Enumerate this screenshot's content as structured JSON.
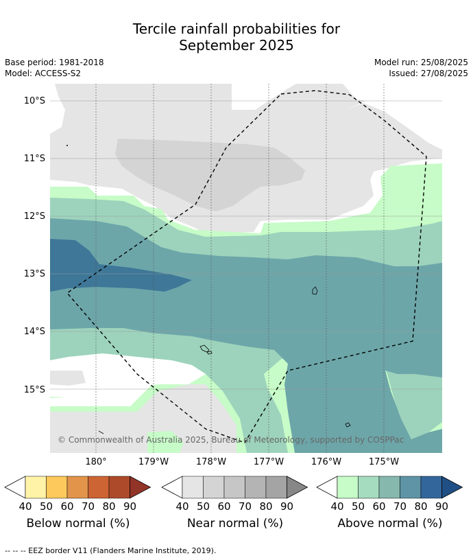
{
  "header": {
    "title_line1": "Tercile rainfall probabilities for",
    "title_line2": "September 2025",
    "base_period": "Base period: 1981-2018",
    "model": "Model: ACCESS-S2",
    "model_run": "Model run: 25/08/2025",
    "issued": "Issued: 27/08/2025"
  },
  "map": {
    "lat_labels": [
      "10°S",
      "11°S",
      "12°S",
      "13°S",
      "14°S",
      "15°S"
    ],
    "lon_labels": [
      "180°",
      "179°W",
      "178°W",
      "177°W",
      "176°W",
      "175°W"
    ],
    "copyright": "© Commonwealth of Australia 2025, Bureau of Meteorology, supported by COSPPac",
    "colors": {
      "near_40": "#e5e5e5",
      "near_50": "#d4d4d4",
      "above_40": "#c7fcc8",
      "above_50": "#9dd3bc",
      "above_60": "#6da6a9",
      "above_70": "#3e7797"
    }
  },
  "colorbars": [
    {
      "label": "Below normal (%)",
      "ticks": [
        "40",
        "50",
        "60",
        "70",
        "80",
        "90"
      ],
      "colors": [
        "#fff3a8",
        "#fdc95c",
        "#e1944a",
        "#cd6433",
        "#ad4a2a",
        "#933428"
      ]
    },
    {
      "label": "Near normal (%)",
      "ticks": [
        "40",
        "50",
        "60",
        "70",
        "80",
        "90"
      ],
      "colors": [
        "#e5e5e5",
        "#d4d4d4",
        "#c6c6c6",
        "#b4b4b4",
        "#a4a4a4",
        "#878787"
      ]
    },
    {
      "label": "Above normal (%)",
      "ticks": [
        "40",
        "50",
        "60",
        "70",
        "80",
        "90"
      ],
      "colors": [
        "#c7fcc8",
        "#a5dcc0",
        "#86b8ad",
        "#5e94a6",
        "#33679c",
        "#1f4f84"
      ]
    }
  ],
  "footer": "--  --  -- EEZ border V11 (Flanders Marine Institute, 2019)."
}
